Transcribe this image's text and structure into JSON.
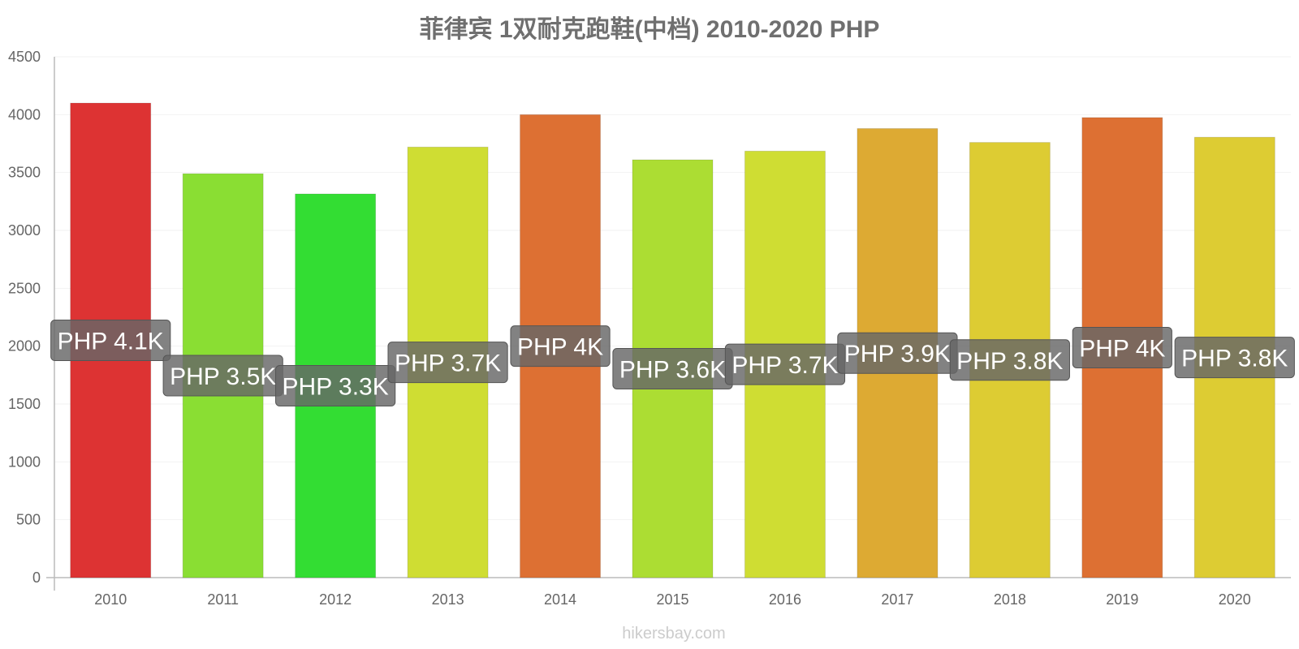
{
  "chart_data": {
    "type": "bar",
    "title": "菲律宾 1双耐克跑鞋(中档) 2010-2020 PHP",
    "xlabel": "",
    "ylabel": "",
    "ylim": [
      0,
      4500
    ],
    "yticks": [
      0,
      500,
      1000,
      1500,
      2000,
      2500,
      3000,
      3500,
      4000,
      4500
    ],
    "grid": true,
    "categories": [
      "2010",
      "2011",
      "2012",
      "2013",
      "2014",
      "2015",
      "2016",
      "2017",
      "2018",
      "2019",
      "2020"
    ],
    "values": [
      4100,
      3490,
      3315,
      3720,
      4000,
      3610,
      3685,
      3880,
      3760,
      3975,
      3805
    ],
    "data_labels": [
      "PHP 4.1K",
      "PHP 3.5K",
      "PHP 3.3K",
      "PHP 3.7K",
      "PHP 4K",
      "PHP 3.6K",
      "PHP 3.7K",
      "PHP 3.9K",
      "PHP 3.8K",
      "PHP 4K",
      "PHP 3.8K"
    ],
    "bar_colors": [
      "#dd3333",
      "#8ade33",
      "#33dd33",
      "#cfdd33",
      "#dd7033",
      "#acdd33",
      "#cfdd33",
      "#ddaa33",
      "#ddcc33",
      "#dd7033",
      "#ddcc33"
    ],
    "label_box_color": "#666666"
  },
  "watermark": "hikersbay.com"
}
